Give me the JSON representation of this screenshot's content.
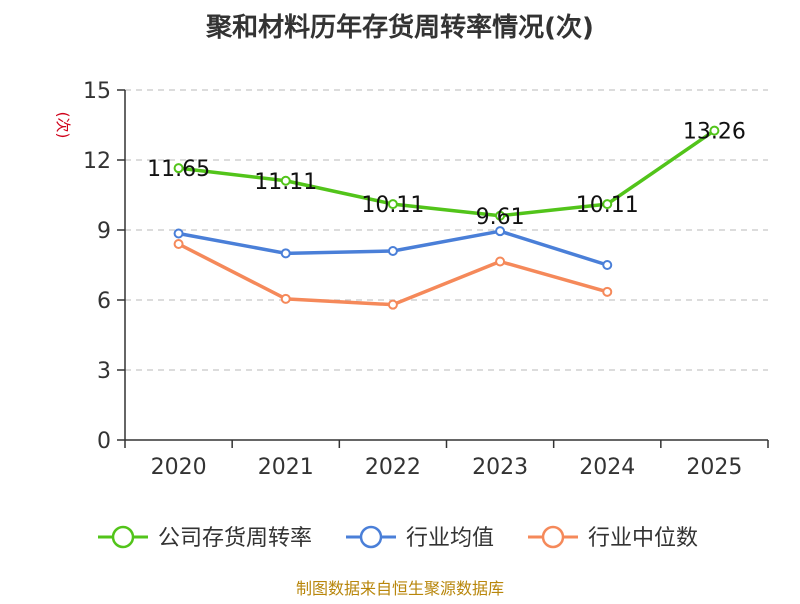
{
  "chart_data": {
    "type": "line",
    "title": "聚和材料历年存货周转率情况(次)",
    "ylabel": "(次)",
    "xlabel": "",
    "categories": [
      "2020",
      "2021",
      "2022",
      "2023",
      "2024",
      "2025"
    ],
    "ylim": [
      0,
      15
    ],
    "yticks": [
      0,
      3,
      6,
      9,
      12,
      15
    ],
    "grid": "horizontal-dashed",
    "legend_position": "bottom",
    "series": [
      {
        "name": "公司存货周转率",
        "color": "#52c41a",
        "values": [
          11.65,
          11.11,
          10.11,
          9.61,
          10.11,
          13.26
        ],
        "labels": [
          "11.65",
          "11.11",
          "10.11",
          "9.61",
          "10.11",
          "13.26"
        ],
        "show_labels": true
      },
      {
        "name": "行业均值",
        "color": "#4a7fd8",
        "values": [
          8.85,
          8.0,
          8.1,
          8.95,
          7.5,
          null
        ],
        "show_labels": false
      },
      {
        "name": "行业中位数",
        "color": "#f5895a",
        "values": [
          8.4,
          6.05,
          5.8,
          7.65,
          6.35,
          null
        ],
        "show_labels": false
      }
    ]
  },
  "footer": {
    "source": "制图数据来自恒生聚源数据库"
  }
}
